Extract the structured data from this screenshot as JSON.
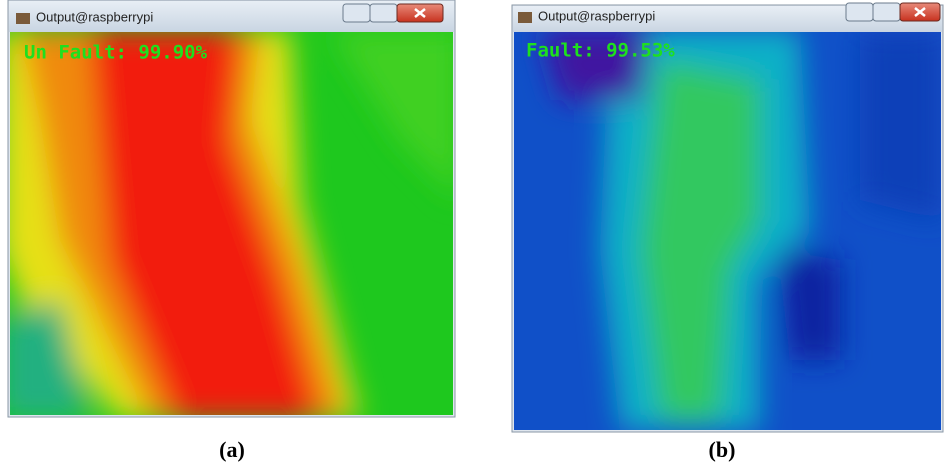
{
  "windows": [
    {
      "title": "Output@raspberrypi",
      "overlay": "Un Fault: 99.90%",
      "caption": "(a)"
    },
    {
      "title": "Output@raspberrypi",
      "overlay": "Fault: 99.53%",
      "caption": "(b)"
    }
  ]
}
